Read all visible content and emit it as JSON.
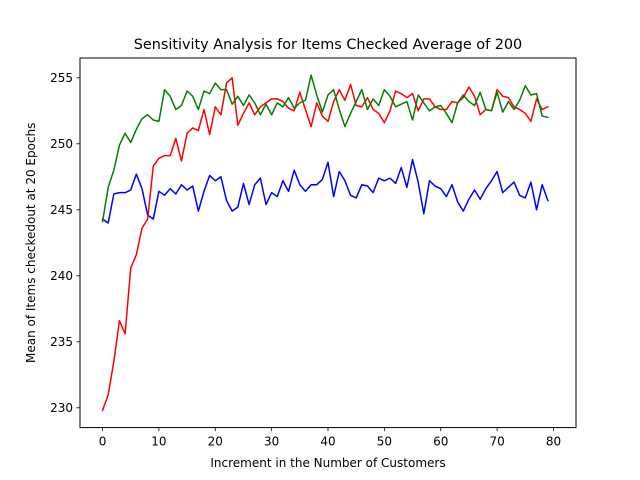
{
  "chart_data": {
    "type": "line",
    "title": "Sensitivity Analysis for Items Checked Average of 200",
    "xlabel": "Increment in the Number of Customers",
    "ylabel": "Mean of Items checkedout at 20 Epochs",
    "xlim": [
      -4,
      84
    ],
    "ylim": [
      228.5,
      256.5
    ],
    "xticks": [
      0,
      10,
      20,
      30,
      40,
      50,
      60,
      70,
      80
    ],
    "yticks": [
      230,
      235,
      240,
      245,
      250,
      255
    ],
    "grid": false,
    "legend": null,
    "series": [
      {
        "color": "#0000ff",
        "values": [
          244.3,
          244.0,
          246.2,
          246.3,
          246.3,
          246.5,
          247.7,
          246.6,
          244.6,
          244.3,
          246.4,
          246.1,
          246.6,
          246.2,
          246.9,
          246.5,
          246.8,
          244.9,
          246.4,
          247.6,
          247.2,
          247.5,
          245.7,
          244.9,
          245.2,
          247.0,
          245.4,
          246.9,
          247.4,
          245.4,
          246.3,
          246.0,
          247.2,
          246.4,
          248.0,
          246.9,
          246.4,
          246.9,
          246.9,
          247.3,
          248.6,
          246.0,
          247.9,
          247.2,
          246.1,
          245.9,
          246.9,
          246.8,
          246.3,
          247.4,
          247.2,
          247.4,
          247.0,
          248.2,
          246.7,
          248.8,
          247.1,
          244.7,
          247.2,
          246.8,
          246.6,
          246.0,
          246.9,
          245.6,
          244.9,
          245.8,
          246.5,
          245.8,
          246.6,
          247.2,
          247.9,
          246.3,
          246.7,
          247.1,
          246.1,
          245.9,
          247.1,
          245.0,
          246.9,
          245.7
        ]
      },
      {
        "color": "#ff0000",
        "values": [
          229.8,
          231.0,
          233.5,
          236.6,
          235.6,
          240.6,
          241.6,
          243.6,
          244.3,
          248.3,
          248.9,
          249.1,
          249.1,
          250.4,
          248.7,
          250.8,
          251.2,
          251.0,
          252.6,
          250.7,
          252.8,
          252.2,
          254.6,
          255.0,
          251.4,
          252.3,
          253.1,
          252.2,
          252.8,
          253.1,
          253.4,
          253.4,
          253.2,
          252.7,
          252.5,
          253.9,
          252.6,
          251.3,
          253.1,
          252.1,
          251.7,
          253.2,
          254.1,
          253.3,
          254.5,
          252.9,
          252.8,
          253.5,
          252.6,
          252.3,
          251.6,
          252.5,
          254.0,
          253.8,
          253.5,
          253.8,
          252.5,
          253.4,
          253.4,
          252.8,
          252.6,
          252.6,
          253.2,
          253.1,
          253.5,
          254.3,
          253.6,
          252.2,
          252.6,
          252.5,
          254.1,
          253.6,
          253.5,
          252.8,
          252.6,
          252.3,
          251.7,
          253.4,
          252.6,
          252.8
        ]
      },
      {
        "color": "#008000",
        "values": [
          244.1,
          246.7,
          248.0,
          249.9,
          250.8,
          250.1,
          251.1,
          251.9,
          252.2,
          251.8,
          251.7,
          254.1,
          253.6,
          252.6,
          252.9,
          254.0,
          253.6,
          252.6,
          254.0,
          253.8,
          254.6,
          254.1,
          254.1,
          253.0,
          253.6,
          252.9,
          253.7,
          253.1,
          252.2,
          253.0,
          252.2,
          253.1,
          252.8,
          253.5,
          252.7,
          253.1,
          253.3,
          255.2,
          253.7,
          252.4,
          253.7,
          254.1,
          252.6,
          251.3,
          252.3,
          253.2,
          254.1,
          252.6,
          253.4,
          252.9,
          254.1,
          253.6,
          252.8,
          253.0,
          253.2,
          251.8,
          253.7,
          253.1,
          252.5,
          252.8,
          252.9,
          252.3,
          251.6,
          253.1,
          253.7,
          253.2,
          252.9,
          253.9,
          252.6,
          252.5,
          253.9,
          252.4,
          253.2,
          252.6,
          253.3,
          254.4,
          253.7,
          253.8,
          252.1,
          252.0
        ]
      }
    ]
  }
}
